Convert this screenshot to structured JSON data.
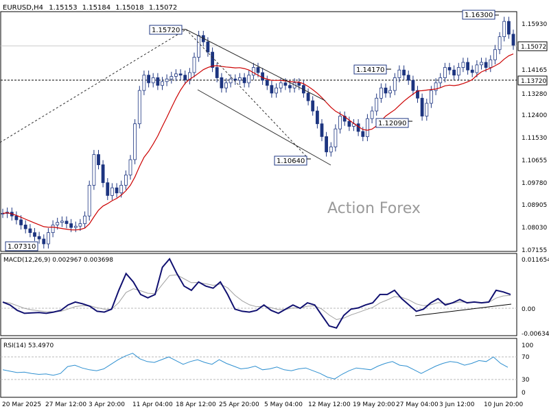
{
  "header": {
    "symbol": "EURUSD,H4",
    "open": "1.15153",
    "high": "1.15184",
    "low": "1.15018",
    "close": "1.15072"
  },
  "watermark": "Action Forex",
  "colors": {
    "background": "#ffffff",
    "frame": "#000000",
    "candle": "#1d3580",
    "ma": "#cc0000",
    "macd": "#101070",
    "macd_signal": "#a0a0a0",
    "rsi": "#2d8fd0",
    "channel": "#2b2b2b",
    "watermark": "#9a9a9a",
    "label_border": "#1d3580"
  },
  "chart_data": [
    {
      "type": "line",
      "panel": "price",
      "title": "EURUSD,H4",
      "ylim": [
        1.0707,
        1.163
      ],
      "grid": false,
      "ytick_labels": [
        "1.15930",
        "1.15072",
        "1.14165",
        "1.13720",
        "1.13280",
        "1.12400",
        "1.11530",
        "1.10655",
        "1.09780",
        "1.08905",
        "1.08030",
        "1.07155"
      ],
      "x_tick_labels": [
        "20 Mar 2025",
        "27 Mar 12:00",
        "3 Apr 20:00",
        "11 Apr 04:00",
        "18 Apr 12:00",
        "25 Apr 20:00",
        "5 May 04:00",
        "12 May 12:00",
        "19 May 20:00",
        "27 May 04:00",
        "3 Jun 12:00",
        "10 Jun 20:00"
      ],
      "series": [
        {
          "name": "",
          "style": "candles",
          "values": [
            {
              "x": "20 Mar 2025",
              "y": 1.085
            },
            {
              "x": "",
              "y": 1.0855
            },
            {
              "x": "",
              "y": 1.084
            },
            {
              "x": "",
              "y": 1.0825
            },
            {
              "x": "",
              "y": 1.0805
            },
            {
              "x": "",
              "y": 1.079
            },
            {
              "x": "",
              "y": 1.0775
            },
            {
              "x": "",
              "y": 1.076
            },
            {
              "x": "",
              "y": 1.075
            },
            {
              "x": "",
              "y": 1.0731
            },
            {
              "x": "27 Mar 12:00",
              "y": 1.0775
            },
            {
              "x": "",
              "y": 1.0805
            },
            {
              "x": "",
              "y": 1.0815
            },
            {
              "x": "",
              "y": 1.082
            },
            {
              "x": "",
              "y": 1.081
            },
            {
              "x": "",
              "y": 1.0795
            },
            {
              "x": "",
              "y": 1.08
            },
            {
              "x": "",
              "y": 1.081
            },
            {
              "x": "",
              "y": 1.084
            },
            {
              "x": "",
              "y": 1.096
            },
            {
              "x": "",
              "y": 1.108
            },
            {
              "x": "3 Apr 20:00",
              "y": 1.104
            },
            {
              "x": "",
              "y": 1.097
            },
            {
              "x": "",
              "y": 1.092
            },
            {
              "x": "",
              "y": 1.095
            },
            {
              "x": "",
              "y": 1.093
            },
            {
              "x": "",
              "y": 1.096
            },
            {
              "x": "",
              "y": 1.1
            },
            {
              "x": "",
              "y": 1.106
            },
            {
              "x": "",
              "y": 1.12
            },
            {
              "x": "",
              "y": 1.133
            },
            {
              "x": "",
              "y": 1.139
            },
            {
              "x": "11 Apr 04:00",
              "y": 1.136
            },
            {
              "x": "",
              "y": 1.138
            },
            {
              "x": "",
              "y": 1.135
            },
            {
              "x": "",
              "y": 1.1365
            },
            {
              "x": "",
              "y": 1.1375
            },
            {
              "x": "",
              "y": 1.1385
            },
            {
              "x": "",
              "y": 1.1395
            },
            {
              "x": "",
              "y": 1.139
            },
            {
              "x": "",
              "y": 1.1372
            },
            {
              "x": "",
              "y": 1.14
            },
            {
              "x": "",
              "y": 1.146
            },
            {
              "x": "18 Apr 12:00",
              "y": 1.1545
            },
            {
              "x": "",
              "y": 1.152
            },
            {
              "x": "",
              "y": 1.148
            },
            {
              "x": "",
              "y": 1.142
            },
            {
              "x": "",
              "y": 1.138
            },
            {
              "x": "",
              "y": 1.134
            },
            {
              "x": "",
              "y": 1.136
            },
            {
              "x": "",
              "y": 1.1375
            },
            {
              "x": "",
              "y": 1.137
            },
            {
              "x": "",
              "y": 1.138
            },
            {
              "x": "",
              "y": 1.136
            },
            {
              "x": "",
              "y": 1.139
            },
            {
              "x": "25 Apr 20:00",
              "y": 1.142
            },
            {
              "x": "",
              "y": 1.14
            },
            {
              "x": "",
              "y": 1.137
            },
            {
              "x": "",
              "y": 1.135
            },
            {
              "x": "",
              "y": 1.132
            },
            {
              "x": "",
              "y": 1.134
            },
            {
              "x": "",
              "y": 1.136
            },
            {
              "x": "",
              "y": 1.135
            },
            {
              "x": "",
              "y": 1.134
            },
            {
              "x": "",
              "y": 1.136
            },
            {
              "x": "",
              "y": 1.135
            },
            {
              "x": "5 May 04:00",
              "y": 1.132
            },
            {
              "x": "",
              "y": 1.129
            },
            {
              "x": "",
              "y": 1.125
            },
            {
              "x": "",
              "y": 1.12
            },
            {
              "x": "",
              "y": 1.115
            },
            {
              "x": "",
              "y": 1.109
            },
            {
              "x": "",
              "y": 1.111
            },
            {
              "x": "",
              "y": 1.118
            },
            {
              "x": "12 May 12:00",
              "y": 1.123
            },
            {
              "x": "",
              "y": 1.121
            },
            {
              "x": "",
              "y": 1.119
            },
            {
              "x": "",
              "y": 1.12
            },
            {
              "x": "",
              "y": 1.117
            },
            {
              "x": "",
              "y": 1.115
            },
            {
              "x": "19 May 20:00",
              "y": 1.122
            },
            {
              "x": "",
              "y": 1.125
            },
            {
              "x": "",
              "y": 1.13
            },
            {
              "x": "",
              "y": 1.134
            },
            {
              "x": "",
              "y": 1.132
            },
            {
              "x": "",
              "y": 1.133
            },
            {
              "x": "",
              "y": 1.138
            },
            {
              "x": "",
              "y": 1.141
            },
            {
              "x": "",
              "y": 1.139
            },
            {
              "x": "",
              "y": 1.137
            },
            {
              "x": "27 May 04:00",
              "y": 1.133
            },
            {
              "x": "",
              "y": 1.13
            },
            {
              "x": "",
              "y": 1.123
            },
            {
              "x": "",
              "y": 1.128
            },
            {
              "x": "",
              "y": 1.133
            },
            {
              "x": "",
              "y": 1.136
            },
            {
              "x": "",
              "y": 1.138
            },
            {
              "x": "",
              "y": 1.142
            },
            {
              "x": "3 Jun 12:00",
              "y": 1.141
            },
            {
              "x": "",
              "y": 1.139
            },
            {
              "x": "",
              "y": 1.142
            },
            {
              "x": "",
              "y": 1.144
            },
            {
              "x": "",
              "y": 1.141
            },
            {
              "x": "",
              "y": 1.14
            },
            {
              "x": "",
              "y": 1.143
            },
            {
              "x": "",
              "y": 1.144
            },
            {
              "x": "",
              "y": 1.142
            },
            {
              "x": "",
              "y": 1.145
            },
            {
              "x": "10 Jun 20:00",
              "y": 1.149
            },
            {
              "x": "",
              "y": 1.154
            },
            {
              "x": "",
              "y": 1.16
            },
            {
              "x": "",
              "y": 1.155
            },
            {
              "x": "",
              "y": 1.1507
            }
          ]
        }
      ],
      "annotations": [
        "1.15720",
        "1.14170",
        "1.10640",
        "1.12090",
        "1.16300",
        "1.07310"
      ],
      "price_tags": [
        "1.15072",
        "1.13720"
      ]
    },
    {
      "type": "line",
      "panel": "macd",
      "title": "MACD(12,26,9) 0.002967 0.003698",
      "ylim": [
        -0.00634,
        0.011654
      ],
      "ytick_labels": [
        "0.011654",
        "0.00",
        "-0.006345"
      ],
      "series": [
        {
          "name": "",
          "role": "macd",
          "values": [
            0.0012,
            0.0005,
            -0.0008,
            -0.0015,
            -0.0014,
            -0.0013,
            -0.0015,
            -0.0012,
            -0.0008,
            0.0005,
            0.0012,
            0.0008,
            0.0002,
            -0.001,
            -0.0012,
            -0.0005,
            0.004,
            0.008,
            0.006,
            0.003,
            0.0022,
            0.003,
            0.0095,
            0.0115,
            0.008,
            0.005,
            0.004,
            0.006,
            0.005,
            0.0045,
            0.006,
            0.003,
            -0.0005,
            -0.001,
            -0.0012,
            -0.0008,
            0.0005,
            -0.0008,
            -0.0015,
            -0.0005,
            0.0005,
            -0.0003,
            0.001,
            0.0005,
            -0.002,
            -0.0045,
            -0.005,
            -0.002,
            -0.0005,
            -0.0002,
            0.0005,
            0.001,
            0.003,
            0.003,
            0.004,
            0.002,
            0.0005,
            -0.001,
            -0.0005,
            0.001,
            0.002,
            0.0005,
            0.001,
            0.0018,
            0.001,
            0.0012,
            0.001,
            0.0012,
            0.004,
            0.0036,
            0.003
          ]
        }
      ]
    },
    {
      "type": "line",
      "panel": "rsi",
      "title": "RSI(14) 53.4970",
      "ylim": [
        0,
        100
      ],
      "ytick_labels": [
        "100",
        "70",
        "30",
        "0"
      ],
      "series": [
        {
          "name": "",
          "role": "rsi",
          "values": [
            48,
            45,
            42,
            43,
            40,
            38,
            39,
            36,
            40,
            55,
            58,
            52,
            48,
            46,
            50,
            60,
            70,
            78,
            84,
            72,
            66,
            64,
            70,
            76,
            68,
            60,
            66,
            70,
            64,
            60,
            70,
            62,
            56,
            50,
            52,
            56,
            48,
            50,
            54,
            48,
            46,
            50,
            52,
            46,
            40,
            32,
            28,
            38,
            46,
            52,
            50,
            48,
            56,
            62,
            66,
            58,
            56,
            48,
            40,
            48,
            56,
            62,
            66,
            64,
            58,
            62,
            68,
            66,
            76,
            62,
            53.5
          ]
        }
      ]
    }
  ]
}
